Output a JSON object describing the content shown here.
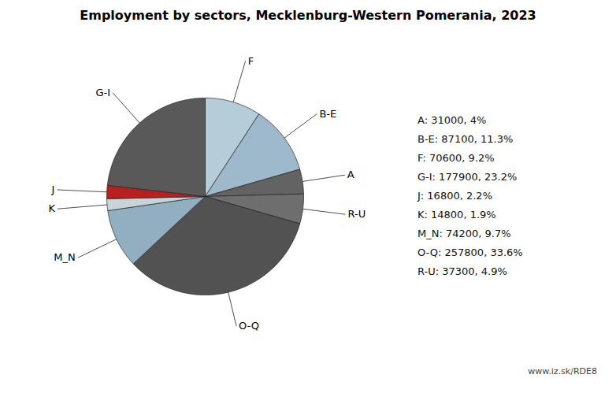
{
  "chart_data": {
    "type": "pie",
    "title": "Employment by sectors, Mecklenburg-Western Pomerania, 2023",
    "categories": [
      "F",
      "B-E",
      "A",
      "R-U",
      "O-Q",
      "M_N",
      "K",
      "J",
      "G-I"
    ],
    "values": [
      70600,
      87100,
      31000,
      37300,
      257800,
      74200,
      14800,
      16800,
      177900
    ],
    "colors": [
      "#b5cdd8",
      "#9eb9cc",
      "#636363",
      "#6e6e6e",
      "#525252",
      "#92afc2",
      "#c8d4d8",
      "#b82020",
      "#595959"
    ],
    "annotations": [
      "A: 31000, 4%",
      "B-E: 87100, 11.3%",
      "F: 70600, 9.2%",
      "G-I: 177900, 23.2%",
      "J: 16800, 2.2%",
      "K: 14800, 1.9%",
      "M_N: 74200, 9.7%",
      "O-Q: 257800, 33.6%",
      "R-U: 37300, 4.9%"
    ],
    "caption": "www.iz.sk/RDE8"
  }
}
